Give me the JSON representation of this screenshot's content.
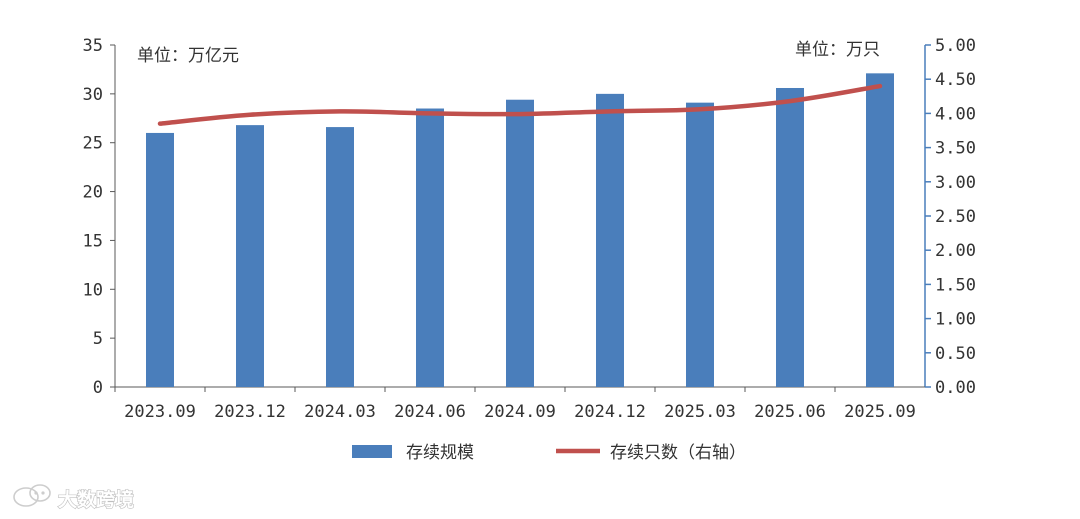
{
  "chart_data": {
    "type": "bar+line",
    "categories": [
      "2023.09",
      "2023.12",
      "2024.03",
      "2024.06",
      "2024.09",
      "2024.12",
      "2025.03",
      "2025.06",
      "2025.09"
    ],
    "series": [
      {
        "name": "存续规模",
        "type": "bar",
        "axis": "left",
        "color": "#4a7ebb",
        "values": [
          26.0,
          26.8,
          26.6,
          28.5,
          29.4,
          30.0,
          29.1,
          30.6,
          32.1
        ]
      },
      {
        "name": "存续只数（右轴）",
        "type": "line",
        "axis": "right",
        "color": "#c0504d",
        "values": [
          3.85,
          3.98,
          4.03,
          4.0,
          3.99,
          4.03,
          4.06,
          4.18,
          4.4
        ]
      }
    ],
    "y_left": {
      "range": [
        0,
        35
      ],
      "ticks": [
        "0",
        "5",
        "10",
        "15",
        "20",
        "25",
        "30",
        "35"
      ],
      "unit_label": "单位：万亿元"
    },
    "y_right": {
      "range": [
        0,
        5
      ],
      "ticks": [
        "0.00",
        "0.50",
        "1.00",
        "1.50",
        "2.00",
        "2.50",
        "3.00",
        "3.50",
        "4.00",
        "4.50",
        "5.00"
      ],
      "unit_label": "单位：万只"
    },
    "grid": false,
    "legend_position": "bottom"
  },
  "watermark": {
    "text": "大数跨境",
    "icon": "chat-bubble-logo-icon"
  }
}
